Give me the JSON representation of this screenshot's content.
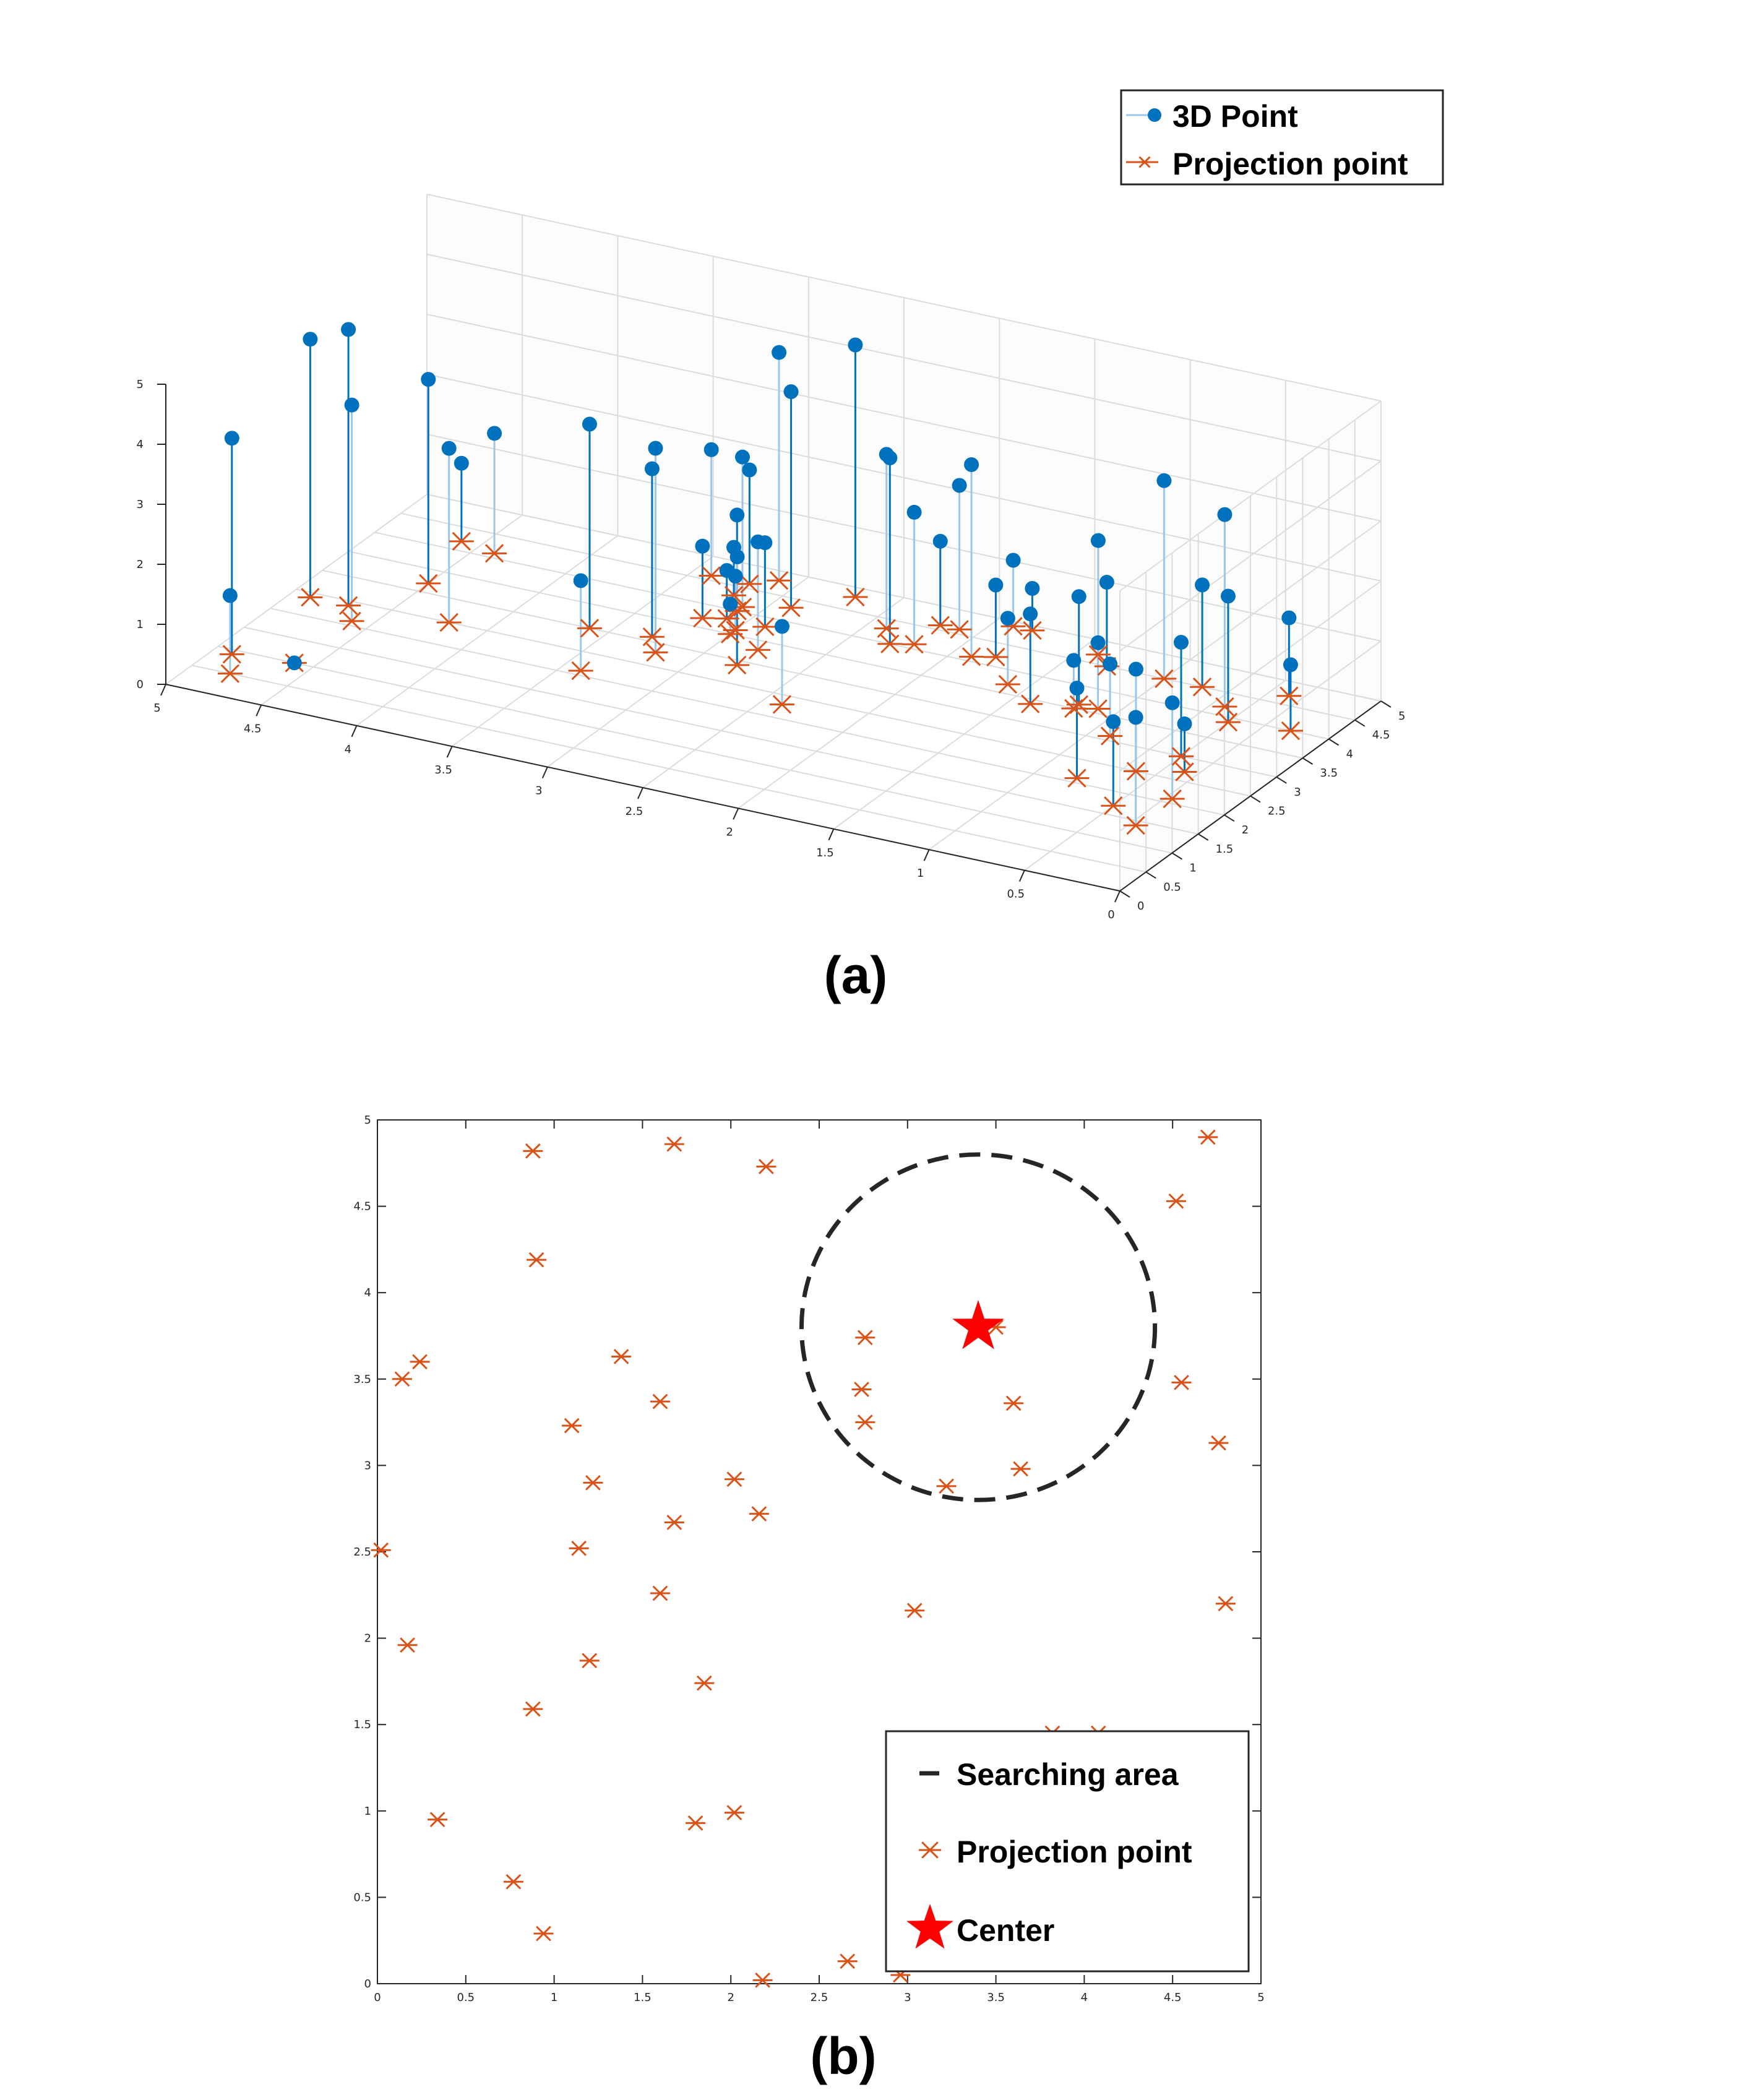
{
  "colors": {
    "point3d": "#0072BD",
    "stem_light": "#9CC7E8",
    "projection": "#D95319",
    "center": "#FF0000",
    "search": "#262626",
    "grid": "#DCDCDC",
    "axis": "#262626"
  },
  "labels": {
    "a": "(a)",
    "b": "(b)"
  },
  "chart_data": [
    {
      "type": "scatter3d",
      "title": "",
      "xlim": [
        0,
        5
      ],
      "ylim": [
        0,
        5
      ],
      "zlim": [
        0,
        5
      ],
      "x_ticks": [
        "0",
        "0.5",
        "1",
        "1.5",
        "2",
        "2.5",
        "3",
        "3.5",
        "4",
        "4.5",
        "5"
      ],
      "y_ticks": [
        "0",
        "0.5",
        "1",
        "1.5",
        "2",
        "2.5",
        "3",
        "3.5",
        "4",
        "4.5",
        "5"
      ],
      "z_ticks": [
        "0",
        "1",
        "2",
        "3",
        "4",
        "5"
      ],
      "grid": true,
      "legend_position": "top-right",
      "series": [
        {
          "name": "3D Point",
          "marker": "filled-circle"
        },
        {
          "name": "Projection point",
          "marker": "asterisk"
        }
      ],
      "points": [
        {
          "x": 4.8,
          "y": 0.5,
          "z": 1.3
        },
        {
          "x": 4.9,
          "y": 0.9,
          "z": 3.6
        },
        {
          "x": 4.6,
          "y": 1.0,
          "z": 0.0
        },
        {
          "x": 4.9,
          "y": 2.4,
          "z": 4.3
        },
        {
          "x": 4.6,
          "y": 2.1,
          "z": 3.6
        },
        {
          "x": 4.7,
          "y": 2.4,
          "z": 4.6
        },
        {
          "x": 4.2,
          "y": 2.5,
          "z": 2.9
        },
        {
          "x": 4.5,
          "y": 3.2,
          "z": 3.4
        },
        {
          "x": 3.4,
          "y": 2.1,
          "z": 1.5
        },
        {
          "x": 3.6,
          "y": 3.0,
          "z": 3.4
        },
        {
          "x": 4.4,
          "y": 4.1,
          "z": 2.0
        },
        {
          "x": 4.6,
          "y": 4.2,
          "z": 1.3
        },
        {
          "x": 3.2,
          "y": 2.8,
          "z": 3.4
        },
        {
          "x": 3.3,
          "y": 3.1,
          "z": 2.8
        },
        {
          "x": 2.4,
          "y": 2.3,
          "z": 1.3
        },
        {
          "x": 2.8,
          "y": 2.9,
          "z": 2.5
        },
        {
          "x": 2.8,
          "y": 3.3,
          "z": 1.8
        },
        {
          "x": 3.2,
          "y": 3.7,
          "z": 1.2
        },
        {
          "x": 3.0,
          "y": 3.6,
          "z": 0.9
        },
        {
          "x": 3.1,
          "y": 3.8,
          "z": 0.8
        },
        {
          "x": 3.0,
          "y": 3.5,
          "z": 0.5
        },
        {
          "x": 2.9,
          "y": 3.8,
          "z": 1.4
        },
        {
          "x": 3.1,
          "y": 4.0,
          "z": 0.9
        },
        {
          "x": 3.2,
          "y": 4.3,
          "z": 0.8
        },
        {
          "x": 3.4,
          "y": 4.6,
          "z": 2.1
        },
        {
          "x": 3.2,
          "y": 4.6,
          "z": 1.9
        },
        {
          "x": 3.1,
          "y": 4.8,
          "z": 3.8
        },
        {
          "x": 2.7,
          "y": 4.8,
          "z": 4.2
        },
        {
          "x": 3.1,
          "y": 4.1,
          "z": 2.5
        },
        {
          "x": 2.9,
          "y": 4.3,
          "z": 3.6
        },
        {
          "x": 2.2,
          "y": 4.1,
          "z": 2.2
        },
        {
          "x": 2.3,
          "y": 4.0,
          "z": 3.1
        },
        {
          "x": 2.4,
          "y": 4.3,
          "z": 2.9
        },
        {
          "x": 2.2,
          "y": 4.6,
          "z": 1.4
        },
        {
          "x": 2.1,
          "y": 4.6,
          "z": 2.4
        },
        {
          "x": 1.8,
          "y": 4.2,
          "z": 1.2
        },
        {
          "x": 1.9,
          "y": 4.1,
          "z": 3.2
        },
        {
          "x": 1.2,
          "y": 3.6,
          "z": 1.8
        },
        {
          "x": 1.1,
          "y": 3.6,
          "z": 1.1
        },
        {
          "x": 1.3,
          "y": 4.5,
          "z": 1.4
        },
        {
          "x": 1.9,
          "y": 4.9,
          "z": 1.1
        },
        {
          "x": 1.8,
          "y": 4.9,
          "z": 0.7
        },
        {
          "x": 0.3,
          "y": 1.4,
          "z": 1.8
        },
        {
          "x": 0.5,
          "y": 1.7,
          "z": 1.4
        },
        {
          "x": 0.3,
          "y": 2.1,
          "z": 1.6
        },
        {
          "x": 0.8,
          "y": 2.1,
          "z": 1.5
        },
        {
          "x": 0.6,
          "y": 2.5,
          "z": 1.7
        },
        {
          "x": 0.5,
          "y": 3.0,
          "z": 1.9
        },
        {
          "x": 0.9,
          "y": 3.1,
          "z": 1.2
        },
        {
          "x": 0.4,
          "y": 2.7,
          "z": 0.8
        },
        {
          "x": 1.2,
          "y": 3.5,
          "z": 0.8
        },
        {
          "x": 1.4,
          "y": 3.4,
          "z": 1.5
        },
        {
          "x": 1.6,
          "y": 3.7,
          "z": 1.1
        },
        {
          "x": 0.5,
          "y": 3.9,
          "z": 2.1
        },
        {
          "x": 1.0,
          "y": 4.5,
          "z": 3.3
        },
        {
          "x": 0.8,
          "y": 4.5,
          "z": 1.7
        },
        {
          "x": 1.4,
          "y": 4.7,
          "z": 1.9
        },
        {
          "x": 0.4,
          "y": 4.7,
          "z": 1.3
        },
        {
          "x": 0.6,
          "y": 4.2,
          "z": 3.2
        },
        {
          "x": 0.2,
          "y": 4.0,
          "z": 1.1
        }
      ]
    },
    {
      "type": "scatter",
      "title": "",
      "xlim": [
        0,
        5
      ],
      "ylim": [
        0,
        5
      ],
      "x_ticks": [
        "0",
        "0.5",
        "1",
        "1.5",
        "2",
        "2.5",
        "3",
        "3.5",
        "4",
        "4.5",
        "5"
      ],
      "y_ticks": [
        "0",
        "0.5",
        "1",
        "1.5",
        "2",
        "2.5",
        "3",
        "3.5",
        "4",
        "4.5",
        "5"
      ],
      "grid": false,
      "legend_position": "bottom-right",
      "legend": [
        "Searching area",
        "Projection point",
        "Center"
      ],
      "center": {
        "x": 3.4,
        "y": 3.8
      },
      "search_radius": 1.0,
      "points": [
        [
          0.88,
          4.82
        ],
        [
          1.68,
          4.86
        ],
        [
          2.2,
          4.73
        ],
        [
          4.7,
          4.9
        ],
        [
          4.52,
          4.53
        ],
        [
          0.9,
          4.19
        ],
        [
          0.14,
          3.5
        ],
        [
          0.24,
          3.6
        ],
        [
          1.38,
          3.63
        ],
        [
          2.76,
          3.74
        ],
        [
          3.5,
          3.8
        ],
        [
          2.74,
          3.44
        ],
        [
          2.76,
          3.25
        ],
        [
          3.6,
          3.36
        ],
        [
          4.55,
          3.48
        ],
        [
          1.1,
          3.23
        ],
        [
          1.6,
          3.37
        ],
        [
          1.22,
          2.9
        ],
        [
          2.02,
          2.92
        ],
        [
          3.22,
          2.88
        ],
        [
          3.64,
          2.98
        ],
        [
          4.76,
          3.13
        ],
        [
          1.68,
          2.67
        ],
        [
          2.16,
          2.72
        ],
        [
          1.14,
          2.52
        ],
        [
          0.02,
          2.51
        ],
        [
          1.6,
          2.26
        ],
        [
          3.04,
          2.16
        ],
        [
          4.8,
          2.2
        ],
        [
          0.17,
          1.96
        ],
        [
          1.2,
          1.87
        ],
        [
          1.85,
          1.74
        ],
        [
          0.88,
          1.59
        ],
        [
          3.82,
          1.45
        ],
        [
          4.08,
          1.45
        ],
        [
          0.34,
          0.95
        ],
        [
          1.8,
          0.93
        ],
        [
          2.02,
          0.99
        ],
        [
          0.77,
          0.59
        ],
        [
          0.94,
          0.29
        ],
        [
          2.18,
          0.02
        ],
        [
          2.66,
          0.13
        ],
        [
          2.96,
          0.05
        ]
      ]
    }
  ]
}
